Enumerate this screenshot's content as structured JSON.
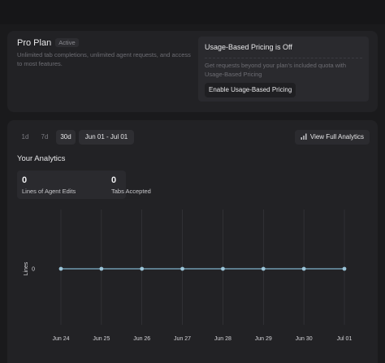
{
  "plan": {
    "title": "Pro Plan",
    "badge": "Active",
    "description": "Unlimited tab completions, unlimited agent requests, and access to most features."
  },
  "usage_pricing": {
    "title": "Usage-Based Pricing is Off",
    "description": "Get requests beyond your plan's included quota with Usage-Based Pricing",
    "button_label": "Enable Usage-Based Pricing"
  },
  "analytics": {
    "ranges": [
      "1d",
      "7d",
      "30d"
    ],
    "selected_range": "30d",
    "date_range": "Jun 01 - Jul 01",
    "full_button_label": "View Full Analytics",
    "section_title": "Your Analytics",
    "stats": [
      {
        "value": "0",
        "label": "Lines of Agent Edits"
      },
      {
        "value": "0",
        "label": "Tabs Accepted"
      }
    ]
  },
  "colors": {
    "line": "#7fb2cc",
    "point": "#9bc4d8",
    "grid": "#3a3a3f"
  },
  "chart_data": {
    "type": "line",
    "x": [
      "Jun 24",
      "Jun 25",
      "Jun 26",
      "Jun 27",
      "Jun 28",
      "Jun 29",
      "Jun 30",
      "Jul 01"
    ],
    "series": [
      {
        "values": [
          0,
          0,
          0,
          0,
          0,
          0,
          0,
          0
        ]
      }
    ],
    "ylabel": "Lines",
    "yticks": [
      0
    ],
    "grid": true
  }
}
